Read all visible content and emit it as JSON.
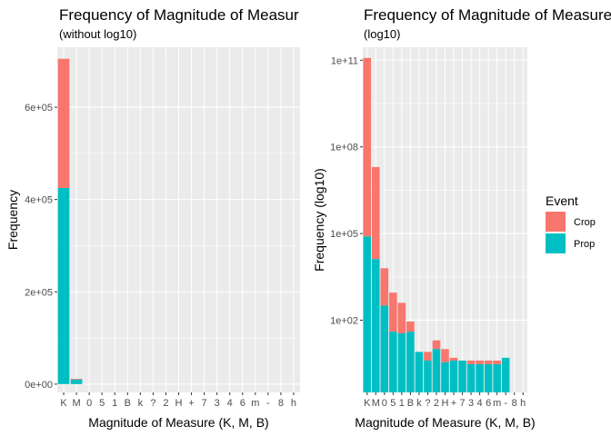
{
  "colors": {
    "crop": "#F8766D",
    "prop": "#00BFC4",
    "panel": "#EBEBEB",
    "grid": "#FFFFFF"
  },
  "legend": {
    "title": "Event",
    "entries": [
      {
        "name": "Crop",
        "color": "#F8766D"
      },
      {
        "name": "Prop",
        "color": "#00BFC4"
      }
    ],
    "placement": "right"
  },
  "chart_data": [
    {
      "type": "bar",
      "stacked": true,
      "title": "Frequency of Magnitude of Measur",
      "subtitle": "(without log10)",
      "xlabel": "Magnitude of Measure (K, M, B)",
      "ylabel": "Frequency",
      "ylim": [
        -18000,
        730000
      ],
      "yticks": [
        {
          "value": 0,
          "label": "0e+00"
        },
        {
          "value": 200000,
          "label": "2e+05"
        },
        {
          "value": 400000,
          "label": "4e+05"
        },
        {
          "value": 600000,
          "label": "6e+05"
        }
      ],
      "categories": [
        "K",
        "M",
        "0",
        "5",
        "1",
        "B",
        "k",
        "?",
        "2",
        "H",
        "+",
        "7",
        "3",
        "4",
        "6",
        "m",
        "-",
        "8",
        "h"
      ],
      "series": [
        {
          "name": "Crop",
          "values": [
            280000,
            1500,
            0,
            0,
            0,
            0,
            0,
            0,
            0,
            0,
            0,
            0,
            0,
            0,
            0,
            0,
            0,
            0,
            0
          ]
        },
        {
          "name": "Prop",
          "values": [
            425000,
            10000,
            0,
            0,
            0,
            0,
            0,
            0,
            0,
            0,
            0,
            0,
            0,
            0,
            0,
            0,
            0,
            0,
            0
          ]
        }
      ]
    },
    {
      "type": "bar",
      "stacked": true,
      "log_scale": true,
      "title": "Frequency of Magnitude of Measure",
      "subtitle": "(log10)",
      "xlabel": "Magnitude of Measure (K, M, B)",
      "ylabel": "Frequency (log10)",
      "ylim_log10": [
        -0.5,
        11.45
      ],
      "yticks": [
        {
          "value": 100,
          "label": "1e+02"
        },
        {
          "value": 100000,
          "label": "1e+05"
        },
        {
          "value": 100000000,
          "label": "1e+08"
        },
        {
          "value": 100000000000,
          "label": "1e+11"
        }
      ],
      "categories": [
        "K",
        "M",
        "0",
        "5",
        "1",
        "B",
        "k",
        "?",
        "2",
        "H",
        "+",
        "7",
        "3",
        "4",
        "6",
        "m",
        "-",
        "8",
        "h"
      ],
      "totals": [
        120000000000.0,
        20000000.0,
        6300,
        900,
        400,
        90,
        8,
        8,
        20,
        10,
        5,
        4,
        4,
        4,
        4,
        4,
        4,
        0,
        0
      ],
      "prop_values": [
        79000.0,
        13000.0,
        320,
        40,
        35,
        40,
        8,
        4,
        10,
        3.5,
        4,
        4,
        3,
        3,
        3,
        3,
        5,
        0,
        0
      ]
    }
  ]
}
